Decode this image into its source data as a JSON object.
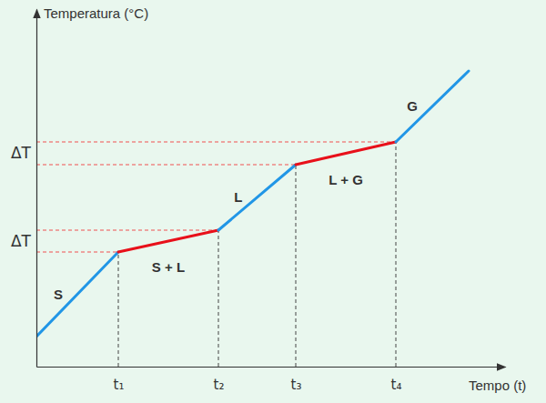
{
  "chart_data": {
    "type": "line",
    "xlabel": "Tempo (t)",
    "ylabel": "Temperatura (°C)",
    "x": [
      0,
      9,
      20,
      28.5,
      39.5,
      47.5
    ],
    "series": [
      {
        "name": "S",
        "color": "#2196e6",
        "values": [
          3.3,
          12.6,
          null,
          null,
          null,
          null
        ]
      },
      {
        "name": "S + L",
        "color": "#e8101a",
        "values": [
          null,
          12.6,
          15.0,
          null,
          null,
          null
        ]
      },
      {
        "name": "L",
        "color": "#2196e6",
        "values": [
          null,
          null,
          15.0,
          22.2,
          null,
          null
        ]
      },
      {
        "name": "L + G",
        "color": "#e8101a",
        "values": [
          null,
          null,
          null,
          22.2,
          24.7,
          null
        ]
      },
      {
        "name": "G",
        "color": "#2196e6",
        "values": [
          null,
          null,
          null,
          null,
          24.7,
          32.5
        ]
      }
    ],
    "xlim": [
      0,
      51.5
    ],
    "ylim": [
      0,
      39.3
    ],
    "xticks": [
      {
        "value": 9,
        "label": "t₁"
      },
      {
        "value": 20,
        "label": "t₂"
      },
      {
        "value": 28.5,
        "label": "t₃"
      },
      {
        "value": 39.5,
        "label": "t₄"
      }
    ],
    "yticks": [
      {
        "value": 13.8,
        "label": "ΔT"
      },
      {
        "value": 23.45,
        "label": "ΔT"
      }
    ],
    "grid": false,
    "tick_labels": true
  }
}
